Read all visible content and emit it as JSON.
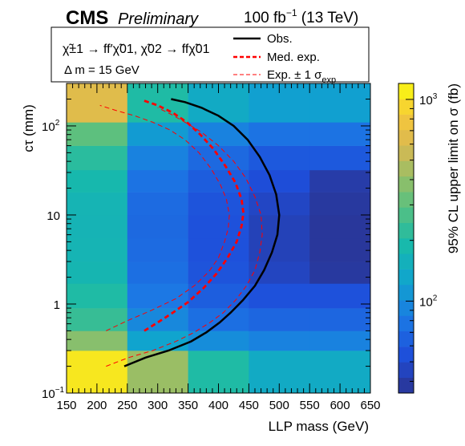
{
  "header": {
    "experiment": "CMS",
    "status": "Preliminary",
    "lumi": "100 fb",
    "lumi_exp": "−1",
    "energy": " (13 TeV)"
  },
  "legend": {
    "process": "χ̃±1 → ff′χ̃01, χ̃02 → ffχ̃01",
    "delta_m": "Δ m = 15 GeV",
    "obs": "Obs.",
    "med": "Med. exp.",
    "band": "Exp. ± 1 σ",
    "band_sub": "exp"
  },
  "chart_data": {
    "type": "heatmap",
    "xlabel": "LLP mass (GeV)",
    "ylabel": "cτ (mm)",
    "zlabel": "95% CL upper limit on σ (fb)",
    "xlim": [
      150,
      650
    ],
    "ylim": [
      0.1,
      300
    ],
    "ylog": true,
    "zlog": true,
    "zlim": [
      35,
      1200
    ],
    "x_ticks": [
      "150",
      "200",
      "250",
      "300",
      "350",
      "400",
      "450",
      "500",
      "550",
      "600",
      "650"
    ],
    "y_ticks": [
      {
        "base": "10",
        "exp": "−1",
        "value": 0.1
      },
      {
        "base": "1",
        "exp": "",
        "value": 1
      },
      {
        "base": "10",
        "exp": "",
        "value": 10
      },
      {
        "base": "10",
        "exp": "2",
        "value": 100
      }
    ],
    "z_ticks": [
      {
        "base": "10",
        "exp": "2",
        "value": 100
      },
      {
        "base": "10",
        "exp": "3",
        "value": 1000
      }
    ],
    "x_bins": [
      150,
      250,
      350,
      450,
      550,
      650
    ],
    "y_bins": [
      0.1,
      0.3,
      0.5,
      0.9,
      1.7,
      3,
      5.5,
      10,
      18,
      32,
      60,
      110,
      300
    ],
    "cells": [
      [
        1050,
        420,
        200,
        140,
        140
      ],
      [
        380,
        125,
        100,
        90,
        90
      ],
      [
        235,
        95,
        75,
        68,
        68
      ],
      [
        200,
        82,
        63,
        55,
        55
      ],
      [
        175,
        75,
        57,
        46,
        38
      ],
      [
        170,
        72,
        55,
        44,
        37
      ],
      [
        168,
        70,
        55,
        44,
        37
      ],
      [
        170,
        72,
        57,
        47,
        38
      ],
      [
        185,
        78,
        62,
        53,
        40
      ],
      [
        215,
        90,
        70,
        60,
        60
      ],
      [
        300,
        115,
        90,
        78,
        78
      ],
      [
        640,
        200,
        140,
        120,
        120
      ]
    ],
    "series": [
      {
        "name": "Obs.",
        "style": "solid",
        "color": "#000000",
        "x": [
          245,
          280,
          318,
          355,
          380,
          402,
          420,
          440,
          460,
          475,
          488,
          497,
          500,
          495,
          484,
          468,
          448,
          425,
          400,
          372,
          345,
          322
        ],
        "y": [
          0.2,
          0.25,
          0.3,
          0.38,
          0.48,
          0.62,
          0.8,
          1.1,
          1.6,
          2.4,
          3.8,
          6,
          10,
          17,
          28,
          45,
          70,
          100,
          130,
          160,
          185,
          200
        ]
      },
      {
        "name": "Med. exp.",
        "style": "dashed",
        "color": "#ff0000",
        "x": [
          278,
          300,
          325,
          350,
          375,
          397,
          415,
          430,
          438,
          441,
          438,
          428,
          412,
          392,
          370,
          348,
          325,
          300,
          275
        ],
        "y": [
          0.5,
          0.62,
          0.8,
          1.05,
          1.5,
          2.2,
          3.3,
          5,
          7.5,
          10.5,
          15,
          23,
          35,
          55,
          80,
          110,
          140,
          170,
          195
        ]
      },
      {
        "name": "Exp. +1σ",
        "style": "thin-dashed",
        "color": "#ff0000",
        "x": [
          215,
          250,
          290,
          330,
          360,
          384,
          400,
          410,
          416,
          418,
          413,
          403,
          388,
          368,
          345,
          320,
          292,
          262,
          230,
          205
        ],
        "y": [
          0.5,
          0.65,
          0.85,
          1.15,
          1.6,
          2.3,
          3.3,
          5,
          7,
          10,
          15,
          22,
          33,
          50,
          70,
          90,
          110,
          130,
          150,
          170
        ]
      },
      {
        "name": "Exp. −1σ",
        "style": "thin-dashed",
        "color": "#ff0000",
        "x": [
          215,
          252,
          292,
          330,
          360,
          386,
          408,
          428,
          446,
          460,
          468,
          472,
          470,
          460,
          445,
          425,
          400,
          372,
          345,
          322,
          300
        ],
        "y": [
          0.2,
          0.25,
          0.3,
          0.38,
          0.48,
          0.62,
          0.8,
          1.1,
          1.6,
          2.4,
          3.8,
          6,
          10,
          16,
          26,
          40,
          60,
          85,
          110,
          135,
          160
        ]
      }
    ]
  }
}
